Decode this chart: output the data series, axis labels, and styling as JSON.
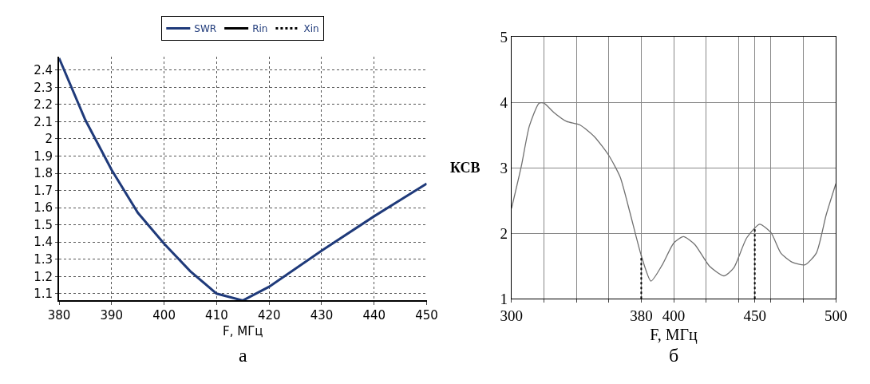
{
  "chart_data": [
    {
      "type": "line",
      "xlabel": "F, МГц",
      "annotations": [
        "а"
      ],
      "xlim": [
        380,
        450
      ],
      "ylim": [
        1.06,
        2.48
      ],
      "xticks": [
        380,
        390,
        400,
        410,
        420,
        430,
        440,
        450
      ],
      "yticks": [
        1.1,
        1.2,
        1.3,
        1.4,
        1.5,
        1.6,
        1.7,
        1.8,
        1.9,
        2,
        2.1,
        2.2,
        2.3,
        2.4
      ],
      "grid": true,
      "legend": "top",
      "marker": "none",
      "x": [
        380,
        385,
        390,
        395,
        400,
        405,
        410,
        415,
        420,
        430,
        440,
        450
      ],
      "series": [
        {
          "name": "SWR",
          "color": "#1f3a7a",
          "line_style": "solid",
          "values": [
            2.47,
            2.11,
            1.82,
            1.57,
            1.39,
            1.23,
            1.1,
            1.06,
            1.14,
            1.35,
            1.55,
            1.74
          ]
        },
        {
          "name": "Rin",
          "color": "#000000",
          "line_style": "solid",
          "values": [
            null,
            null,
            null,
            null,
            null,
            null,
            null,
            null,
            null,
            null,
            null,
            null
          ]
        },
        {
          "name": "Xin",
          "color": "#000000",
          "line_style": "dotted",
          "values": [
            null,
            null,
            null,
            null,
            null,
            null,
            null,
            null,
            null,
            null,
            null,
            null
          ]
        }
      ]
    },
    {
      "type": "line",
      "xlabel": "F, МГц",
      "ylabel": "КСВ",
      "annotations": [
        "б"
      ],
      "xlim": [
        300,
        500
      ],
      "ylim": [
        1,
        5
      ],
      "xticks": [
        300,
        {
          "value": 320,
          "label": null
        },
        {
          "value": 340,
          "label": null
        },
        {
          "value": 360,
          "label": null
        },
        380,
        400,
        {
          "value": 420,
          "label": null
        },
        {
          "value": 440,
          "label": null
        },
        450,
        {
          "value": 460,
          "label": null
        },
        {
          "value": 480,
          "label": null
        },
        500
      ],
      "yticks": [
        1,
        2,
        3,
        4,
        5
      ],
      "grid": true,
      "marker": "none",
      "x": [
        300,
        306,
        311,
        317,
        320,
        326,
        334,
        342,
        351,
        360,
        367,
        373,
        380,
        386,
        393,
        400,
        406,
        413,
        422,
        431,
        437,
        445,
        453,
        460,
        466,
        473,
        481,
        488,
        494,
        500
      ],
      "series": [
        {
          "color": "#707070",
          "line_style": "solid",
          "values": [
            2.38,
            3.02,
            3.64,
            3.99,
            3.99,
            3.85,
            3.71,
            3.66,
            3.48,
            3.19,
            2.86,
            2.32,
            1.66,
            1.27,
            1.52,
            1.85,
            1.95,
            1.83,
            1.5,
            1.35,
            1.47,
            1.93,
            2.14,
            2.01,
            1.7,
            1.56,
            1.52,
            1.7,
            2.28,
            2.76
          ]
        }
      ],
      "ref_lines": [
        {
          "axis": "x",
          "value": 380,
          "color": "#000000",
          "line_style": "dotted"
        },
        {
          "axis": "x",
          "value": 450,
          "color": "#000000",
          "line_style": "dotted"
        }
      ]
    }
  ]
}
